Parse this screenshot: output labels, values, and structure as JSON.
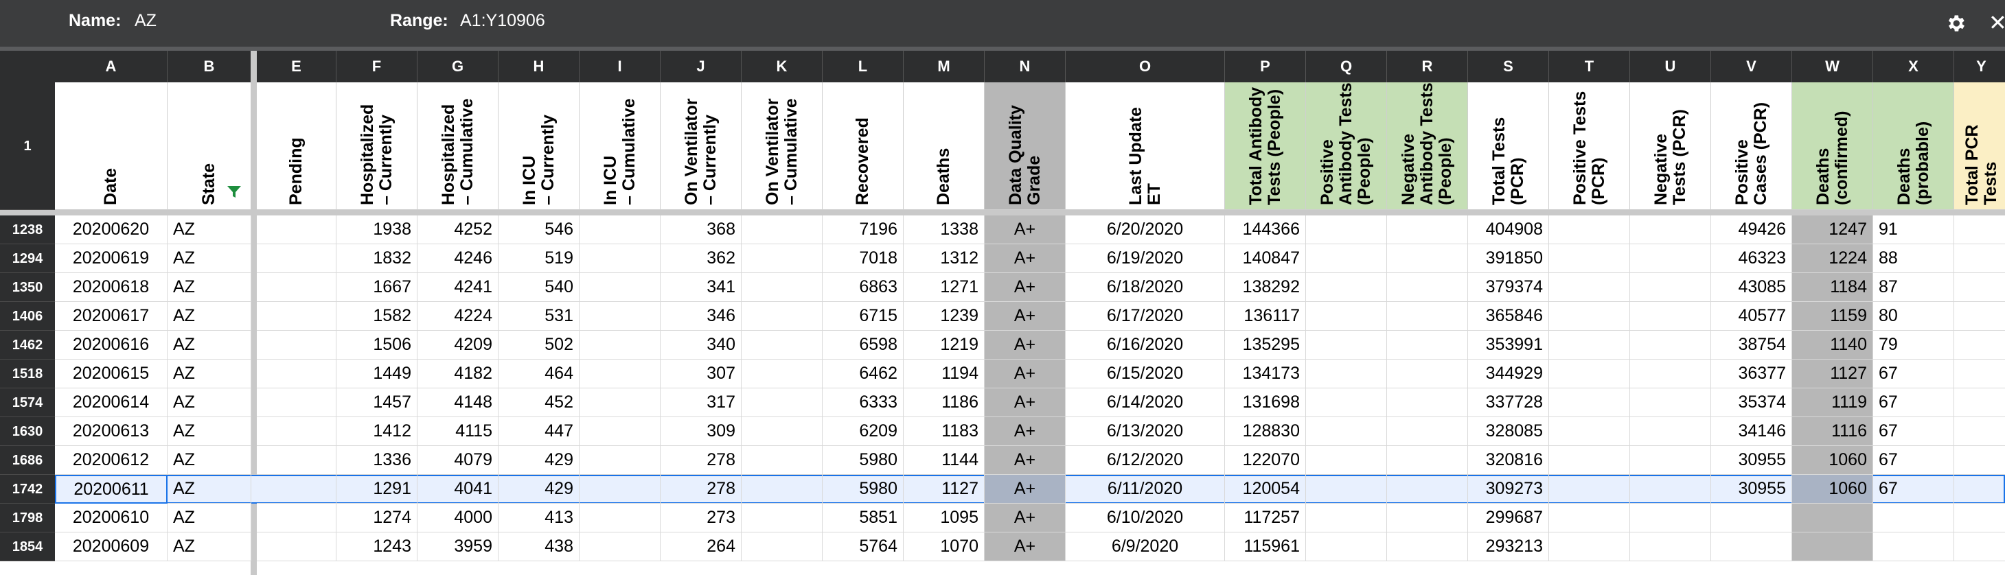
{
  "topbar": {
    "name_label": "Name:",
    "name_value": "AZ",
    "range_label": "Range:",
    "range_value": "A1:Y10906",
    "close_glyph": "✕"
  },
  "header_row_number": "1",
  "columns": [
    {
      "letter": "A",
      "header": "Date"
    },
    {
      "letter": "B",
      "header": "State"
    },
    {
      "letter": "E",
      "header": "Pending"
    },
    {
      "letter": "F",
      "header": "Hospitalized\n– Currently"
    },
    {
      "letter": "G",
      "header": "Hospitalized\n– Cumulative"
    },
    {
      "letter": "H",
      "header": "In ICU\n– Currently"
    },
    {
      "letter": "I",
      "header": "In ICU\n– Cumulative"
    },
    {
      "letter": "J",
      "header": "On Ventilator\n– Currently"
    },
    {
      "letter": "K",
      "header": "On Ventilator\n– Cumulative"
    },
    {
      "letter": "L",
      "header": "Recovered"
    },
    {
      "letter": "M",
      "header": "Deaths"
    },
    {
      "letter": "N",
      "header": "Data Quality\nGrade"
    },
    {
      "letter": "O",
      "header": "Last Update\nET"
    },
    {
      "letter": "P",
      "header": "Total Antibody\nTests (People)"
    },
    {
      "letter": "Q",
      "header": "Positive\nAntibody Tests\n(People)"
    },
    {
      "letter": "R",
      "header": "Negative\nAntibody Tests\n(People)"
    },
    {
      "letter": "S",
      "header": "Total Tests\n(PCR)"
    },
    {
      "letter": "T",
      "header": "Positive Tests\n(PCR)"
    },
    {
      "letter": "U",
      "header": "Negative\nTests (PCR)"
    },
    {
      "letter": "V",
      "header": "Positive\nCases (PCR)"
    },
    {
      "letter": "W",
      "header": "Deaths\n(confirmed)"
    },
    {
      "letter": "X",
      "header": "Deaths\n(probable)"
    },
    {
      "letter": "Y",
      "header": "Total PCR\nTests"
    }
  ],
  "colors": {
    "topbar": "#3c3d3e",
    "header_dark": "#2d2e2f",
    "grade_gray": "#b7b7b7",
    "antibody_green": "#c5dfb5",
    "deaths_green": "#c5dfb5",
    "pcr_yellow": "#fbefc5",
    "selection_blue": "#1a73e8",
    "selection_fill": "#e8f0fe",
    "filter_green": "#1e8e3e"
  },
  "rows": [
    {
      "rownum": "1238",
      "A": "20200620",
      "B": "AZ",
      "F": "1938",
      "G": "4252",
      "H": "546",
      "J": "368",
      "L": "7196",
      "M": "1338",
      "N": "A+",
      "O": "6/20/2020",
      "P": "144366",
      "S": "404908",
      "V": "49426",
      "W": "1247",
      "X": "91"
    },
    {
      "rownum": "1294",
      "A": "20200619",
      "B": "AZ",
      "F": "1832",
      "G": "4246",
      "H": "519",
      "J": "362",
      "L": "7018",
      "M": "1312",
      "N": "A+",
      "O": "6/19/2020",
      "P": "140847",
      "S": "391850",
      "V": "46323",
      "W": "1224",
      "X": "88"
    },
    {
      "rownum": "1350",
      "A": "20200618",
      "B": "AZ",
      "F": "1667",
      "G": "4241",
      "H": "540",
      "J": "341",
      "L": "6863",
      "M": "1271",
      "N": "A+",
      "O": "6/18/2020",
      "P": "138292",
      "S": "379374",
      "V": "43085",
      "W": "1184",
      "X": "87"
    },
    {
      "rownum": "1406",
      "A": "20200617",
      "B": "AZ",
      "F": "1582",
      "G": "4224",
      "H": "531",
      "J": "346",
      "L": "6715",
      "M": "1239",
      "N": "A+",
      "O": "6/17/2020",
      "P": "136117",
      "S": "365846",
      "V": "40577",
      "W": "1159",
      "X": "80"
    },
    {
      "rownum": "1462",
      "A": "20200616",
      "B": "AZ",
      "F": "1506",
      "G": "4209",
      "H": "502",
      "J": "340",
      "L": "6598",
      "M": "1219",
      "N": "A+",
      "O": "6/16/2020",
      "P": "135295",
      "S": "353991",
      "V": "38754",
      "W": "1140",
      "X": "79"
    },
    {
      "rownum": "1518",
      "A": "20200615",
      "B": "AZ",
      "F": "1449",
      "G": "4182",
      "H": "464",
      "J": "307",
      "L": "6462",
      "M": "1194",
      "N": "A+",
      "O": "6/15/2020",
      "P": "134173",
      "S": "344929",
      "V": "36377",
      "W": "1127",
      "X": "67"
    },
    {
      "rownum": "1574",
      "A": "20200614",
      "B": "AZ",
      "F": "1457",
      "G": "4148",
      "H": "452",
      "J": "317",
      "L": "6333",
      "M": "1186",
      "N": "A+",
      "O": "6/14/2020",
      "P": "131698",
      "S": "337728",
      "V": "35374",
      "W": "1119",
      "X": "67"
    },
    {
      "rownum": "1630",
      "A": "20200613",
      "B": "AZ",
      "F": "1412",
      "G": "4115",
      "H": "447",
      "J": "309",
      "L": "6209",
      "M": "1183",
      "N": "A+",
      "O": "6/13/2020",
      "P": "128830",
      "S": "328085",
      "V": "34146",
      "W": "1116",
      "X": "67"
    },
    {
      "rownum": "1686",
      "A": "20200612",
      "B": "AZ",
      "F": "1336",
      "G": "4079",
      "H": "429",
      "J": "278",
      "L": "5980",
      "M": "1144",
      "N": "A+",
      "O": "6/12/2020",
      "P": "122070",
      "S": "320816",
      "V": "30955",
      "W": "1060",
      "X": "67"
    },
    {
      "rownum": "1742",
      "A": "20200611",
      "B": "AZ",
      "F": "1291",
      "G": "4041",
      "H": "429",
      "J": "278",
      "L": "5980",
      "M": "1127",
      "N": "A+",
      "O": "6/11/2020",
      "P": "120054",
      "S": "309273",
      "V": "30955",
      "W": "1060",
      "X": "67"
    },
    {
      "rownum": "1798",
      "A": "20200610",
      "B": "AZ",
      "F": "1274",
      "G": "4000",
      "H": "413",
      "J": "273",
      "L": "5851",
      "M": "1095",
      "N": "A+",
      "O": "6/10/2020",
      "P": "117257",
      "S": "299687"
    },
    {
      "rownum": "1854",
      "A": "20200609",
      "B": "AZ",
      "F": "1243",
      "G": "3959",
      "H": "438",
      "J": "264",
      "L": "5764",
      "M": "1070",
      "N": "A+",
      "O": "6/9/2020",
      "P": "115961",
      "S": "293213"
    }
  ],
  "selected_row_index": 9
}
